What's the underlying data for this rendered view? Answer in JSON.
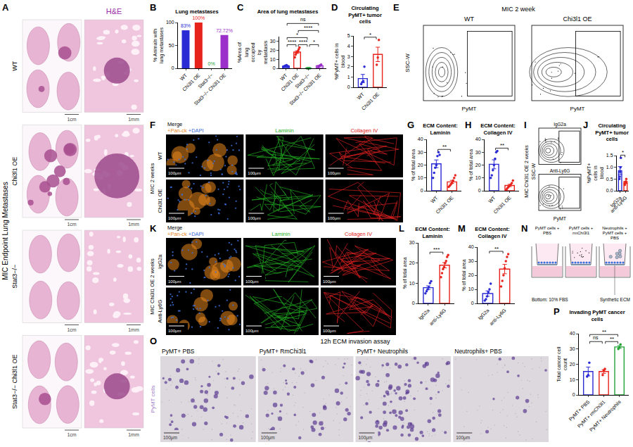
{
  "chart_data": [
    {
      "label": "B",
      "type": "bar",
      "title": "Lung metastases",
      "y_label": "% Animals with lung metastases",
      "categories": [
        "WT",
        "Chi3l1 OE",
        "Stat3−/−",
        "Stat3−/− Chi3l1 OE"
      ],
      "values": [
        83,
        100,
        0,
        72.72
      ],
      "value_labels": [
        "83%",
        "100%",
        "0%",
        "72.72%"
      ],
      "data_labels": true,
      "colors": [
        "#2b2bd6",
        "#e8231c",
        "#21a336",
        "#9a2fc9"
      ],
      "ylim": [
        0,
        100
      ],
      "yticks": [
        0,
        50,
        100
      ]
    },
    {
      "label": "C",
      "type": "bar",
      "title": "Area of lung metastases",
      "y_label": "%Area of lung occupied by metastasis",
      "categories": [
        "WT",
        "Chi3l1 OE",
        "Stat3−/−",
        "Stat3−/− Chi3l1 OE"
      ],
      "values": [
        2.4,
        17.9,
        0,
        2.7
      ],
      "errors": [
        0.3,
        1.4,
        0,
        0.5
      ],
      "points": [
        [
          1.5,
          2,
          2.5,
          3,
          2,
          3.5,
          2.8,
          1.8,
          2.2
        ],
        [
          12,
          15,
          17,
          18,
          19,
          21,
          23
        ],
        [
          0,
          0,
          0,
          0,
          0
        ],
        [
          1,
          2,
          3,
          3.5,
          4
        ]
      ],
      "colors": [
        "#2b2bd6",
        "#e8231c",
        "#21a336",
        "#9a2fc9"
      ],
      "ylim": [
        0,
        35
      ],
      "yticks": [
        0,
        10,
        20,
        30
      ],
      "significance": [
        {
          "from": 0,
          "to": 1,
          "label": "****"
        },
        {
          "from": 1,
          "to": 2,
          "label": "****"
        },
        {
          "from": 2,
          "to": 3,
          "label": "*"
        },
        {
          "from": 0,
          "to": 2,
          "label": "*"
        },
        {
          "from": 1,
          "to": 3,
          "label": "****"
        },
        {
          "from": 0,
          "to": 3,
          "label": "ns"
        }
      ]
    },
    {
      "label": "D",
      "type": "bar",
      "title": "Circulating PyMT+ tumor cells",
      "y_label": "%PyMT+ cells in blood",
      "categories": [
        "WT",
        "Chi3l1 OE"
      ],
      "values": [
        0.85,
        3.2
      ],
      "errors": [
        0.4,
        0.7
      ],
      "points": [
        [
          0.3,
          0.5,
          0.6,
          2.0
        ],
        [
          2.2,
          2.9,
          4.6
        ]
      ],
      "colors": [
        "#2b2bd6",
        "#e8231c"
      ],
      "ylim": [
        0,
        5
      ],
      "yticks": [
        0,
        1,
        2,
        3,
        4,
        5
      ],
      "significance": [
        {
          "from": 0,
          "to": 1,
          "label": "*"
        }
      ]
    },
    {
      "label": "G",
      "type": "bar",
      "title": "ECM Content: Laminin",
      "y_label": "% of total area",
      "categories": [
        "WT",
        "Chi3l1 OE"
      ],
      "values": [
        21,
        6.9
      ],
      "errors": [
        3,
        1.2
      ],
      "points": [
        [
          10,
          14,
          18,
          20,
          27,
          30,
          28
        ],
        [
          3,
          4,
          5,
          6,
          8,
          10,
          12
        ]
      ],
      "colors": [
        "#2b2bd6",
        "#e8231c"
      ],
      "ylim": [
        0,
        40
      ],
      "yticks": [
        0,
        10,
        20,
        30,
        40
      ],
      "significance": [
        {
          "from": 0,
          "to": 1,
          "label": "**"
        }
      ]
    },
    {
      "label": "H",
      "type": "bar",
      "title": "ECM Content: Collagen IV",
      "y_label": "% of total area",
      "categories": [
        "WT",
        "Chi3l1 OE"
      ],
      "values": [
        20.6,
        4.1
      ],
      "errors": [
        3.5,
        0.9
      ],
      "points": [
        [
          10,
          12,
          16,
          20,
          25,
          30,
          31
        ],
        [
          1,
          2,
          3,
          4,
          5,
          6,
          8
        ]
      ],
      "colors": [
        "#2b2bd6",
        "#e8231c"
      ],
      "ylim": [
        0,
        40
      ],
      "yticks": [
        0,
        10,
        20,
        30,
        40
      ],
      "significance": [
        {
          "from": 0,
          "to": 1,
          "label": "**"
        }
      ]
    },
    {
      "label": "J",
      "type": "bar",
      "title": "Circulating PyMT+ tumor cells",
      "y_label": "%PyMT+ cells in blood",
      "categories": [
        "IgG2a",
        "anti-Ly6G"
      ],
      "values": [
        0.86,
        0.36
      ],
      "errors": [
        0.17,
        0.04
      ],
      "points": [
        [
          0.5,
          0.6,
          0.8,
          1.0,
          1.4
        ],
        [
          0.25,
          0.3,
          0.35,
          0.4,
          0.5
        ]
      ],
      "colors": [
        "#2b2bd6",
        "#e8231c"
      ],
      "ylim": [
        0,
        1.5
      ],
      "yticks": [
        {
          "value": 0,
          "label": "0.0"
        },
        0.5,
        {
          "value": 1,
          "label": "1.0"
        },
        1.5
      ],
      "significance": [
        {
          "from": 0,
          "to": 1,
          "label": "*"
        }
      ]
    },
    {
      "label": "L",
      "type": "bar",
      "title": "ECM Content: Laminin",
      "y_label": "% of total area",
      "categories": [
        "IgG2a",
        "anti-Ly6G"
      ],
      "values": [
        7.8,
        18.9
      ],
      "errors": [
        0.9,
        1.3
      ],
      "points": [
        [
          5,
          6,
          7,
          8,
          10,
          11
        ],
        [
          13,
          15,
          17,
          18,
          20,
          21,
          23,
          24
        ]
      ],
      "colors": [
        "#2b2bd6",
        "#e8231c"
      ],
      "ylim": [
        0,
        30
      ],
      "yticks": [
        0,
        10,
        20,
        30
      ],
      "significance": [
        {
          "from": 0,
          "to": 1,
          "label": "***"
        }
      ]
    },
    {
      "label": "M",
      "type": "bar",
      "title": "ECM Content: Collagen IV",
      "y_label": "% of total area",
      "categories": [
        "IgG2a",
        "anti-Ly6G"
      ],
      "values": [
        7,
        24.4
      ],
      "errors": [
        1.9,
        3.3
      ],
      "points": [
        [
          2,
          3,
          5,
          8,
          10,
          14
        ],
        [
          12,
          16,
          20,
          25,
          30,
          33,
          35
        ]
      ],
      "colors": [
        "#2b2bd6",
        "#e8231c"
      ],
      "ylim": [
        0,
        40
      ],
      "yticks": [
        0,
        10,
        20,
        30,
        40
      ],
      "significance": [
        {
          "from": 0,
          "to": 1,
          "label": "**"
        }
      ]
    },
    {
      "label": "P",
      "type": "bar",
      "title": "Invading PyMT cancer cells",
      "y_label": "Total cancer cell count",
      "categories": [
        "PyMT+ PBS",
        "PyMT+ rmChi3l1",
        "PyMT+ Neutrophils"
      ],
      "values": [
        15.3,
        15.3,
        31.3
      ],
      "errors": [
        2.9,
        1.2,
        0.9
      ],
      "points": [
        [
          12,
          13,
          21
        ],
        [
          13,
          16,
          17
        ],
        [
          30,
          31,
          33
        ]
      ],
      "colors": [
        "#2b2bd6",
        "#e8231c",
        "#21a336"
      ],
      "ylim": [
        0,
        40
      ],
      "yticks": [
        0,
        10,
        20,
        30,
        40
      ],
      "significance": [
        {
          "from": 0,
          "to": 1,
          "label": "ns"
        },
        {
          "from": 1,
          "to": 2,
          "label": "**"
        },
        {
          "from": 0,
          "to": 2,
          "label": "**"
        }
      ]
    }
  ],
  "figure": {
    "A": {
      "label": "A",
      "side_title": "MIC Endpoint Lung Metastases",
      "stain": "H&E",
      "stain_color": "#9a2fa8",
      "rows": [
        "WT",
        "Chi3l1 OE",
        "Stat3−/−",
        "Stat3−/− Chi3l1 OE"
      ],
      "scale_bars": [
        "1cm",
        "1mm"
      ]
    },
    "E": {
      "label": "E",
      "title": "MIC 2 week",
      "groups": [
        "WT",
        "Chi3l1 OE"
      ],
      "y_axis": "SSC-W",
      "x_axis": "PyMT"
    },
    "F": {
      "label": "F",
      "row_title": "MIC 2 weeks",
      "rows": [
        "WT",
        "Chi3l1 OE"
      ],
      "columns": [
        [
          {
            "text": "Merge",
            "color": "#000000"
          },
          {
            "text": "+Pan-ck",
            "color": "#e8871e"
          },
          {
            "text": "+DAPI",
            "color": "#3a6fd8"
          }
        ],
        [
          {
            "text": "Laminin",
            "color": "#22b022"
          }
        ],
        [
          {
            "text": "Collagen IV",
            "color": "#e02020"
          }
        ]
      ],
      "scale_bar": "100μm"
    },
    "I": {
      "label": "I",
      "title": "MIC Chi3l1 OE 2 weeks",
      "groups": [
        "IgG2a",
        "Anti-Ly6G"
      ],
      "y_axis": "SSC-W",
      "x_axis": "PyMT"
    },
    "K": {
      "label": "K",
      "row_title": "MIC Chi3l1 OE 2 weeks",
      "rows": [
        "IgG2a",
        "Anti-Ly6G"
      ],
      "columns": [
        [
          {
            "text": "Merge",
            "color": "#000000"
          },
          {
            "text": "+Pan-ck",
            "color": "#e8871e"
          },
          {
            "text": "+DAPI",
            "color": "#3a6fd8"
          }
        ],
        [
          {
            "text": "Laminin",
            "color": "#22b022"
          }
        ],
        [
          {
            "text": "Collagen IV",
            "color": "#e02020"
          }
        ]
      ],
      "scale_bar": "100μm"
    },
    "N": {
      "label": "N",
      "wells": [
        "PyMT cells + PBS",
        "PyMT cells + rmChi3l1",
        "Neutrophils + PyMT cells + PBS"
      ],
      "membrane": "Synthetic ECM",
      "bottom": "Bottom: 10% FBS"
    },
    "O": {
      "label": "O",
      "title": "12h ECM invasion assay",
      "columns": [
        "PyMT+ PBS",
        "PyMT+ RmChi3l1",
        "PyMT+ Neutrophils",
        "Neutrophils+ PBS"
      ],
      "row_title": "PyMT cells",
      "row_title_color": "#a27cc7",
      "scale_bar": "100μm"
    }
  }
}
